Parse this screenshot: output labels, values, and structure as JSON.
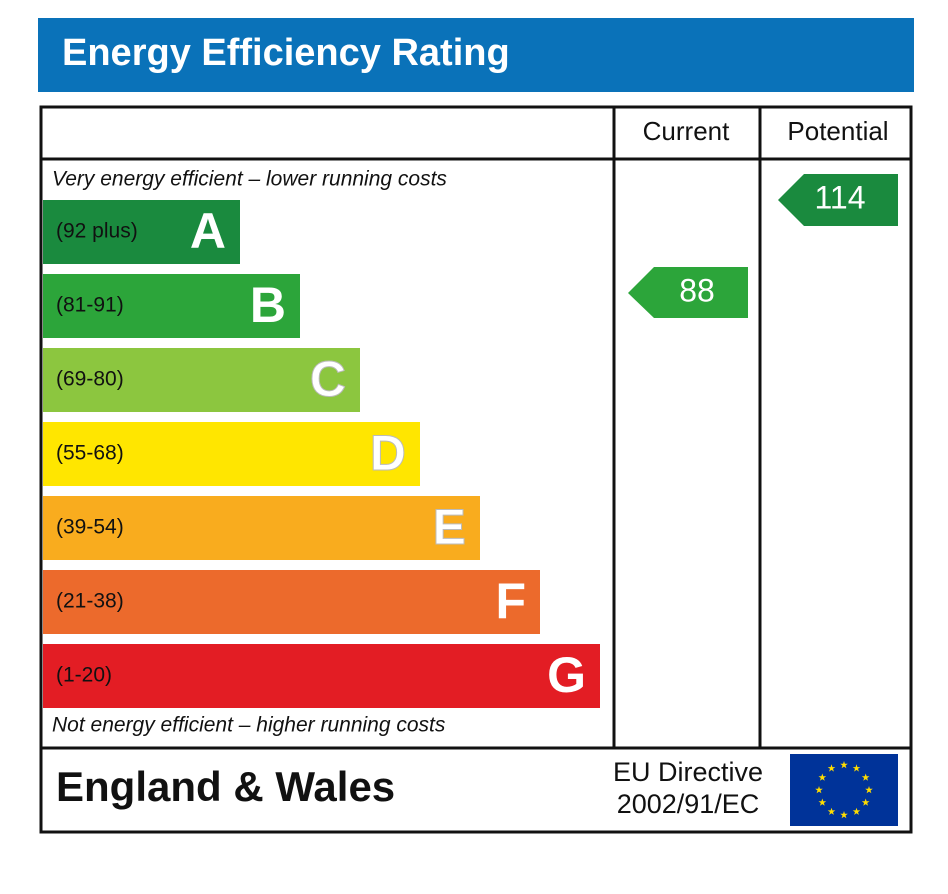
{
  "title": "Energy Efficiency Rating",
  "headers": {
    "current": "Current",
    "potential": "Potential"
  },
  "top_note": "Very energy efficient – lower running costs",
  "bottom_note": "Not energy efficient – higher running costs",
  "bands": [
    {
      "range": "(92 plus)",
      "letter": "A",
      "color": "#1a8a3e"
    },
    {
      "range": "(81-91)",
      "letter": "B",
      "color": "#2ca53a"
    },
    {
      "range": "(69-80)",
      "letter": "C",
      "color": "#8cc63f"
    },
    {
      "range": "(55-68)",
      "letter": "D",
      "color": "#ffe600"
    },
    {
      "range": "(39-54)",
      "letter": "E",
      "color": "#f9ac1e"
    },
    {
      "range": "(21-38)",
      "letter": "F",
      "color": "#ec6a2c"
    },
    {
      "range": "(1-20)",
      "letter": "G",
      "color": "#e31d24"
    }
  ],
  "current": {
    "value": 88,
    "color": "#2ca53a"
  },
  "potential": {
    "value": 114,
    "color": "#1a8a3e"
  },
  "footer": {
    "region": "England & Wales",
    "directive_line1": "EU Directive",
    "directive_line2": "2002/91/EC"
  }
}
